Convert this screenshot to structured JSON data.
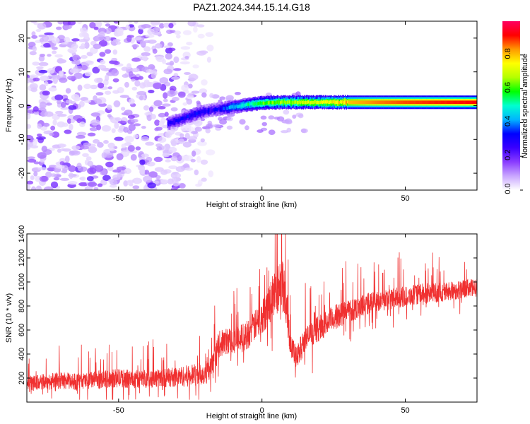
{
  "title": "PAZ1.2024.344.15.14.G18",
  "chart_data": [
    {
      "type": "heatmap",
      "xlabel": "Height of straight line (km)",
      "ylabel": "Frequency (Hz)",
      "xlim": [
        -82,
        75
      ],
      "ylim": [
        -25,
        25
      ],
      "x_ticks": [
        -50,
        0,
        50
      ],
      "y_ticks": [
        -20,
        -10,
        0,
        10,
        20
      ],
      "colorbar": {
        "label": "Normalized spectral amplitude",
        "range": [
          0,
          1
        ],
        "ticks": [
          "0.0",
          "0.2",
          "0.4",
          "0.6",
          "0.8"
        ],
        "tick_values": [
          0,
          0.2,
          0.4,
          0.6,
          0.8
        ],
        "colors": [
          "#ffffff",
          "#c9a6ff",
          "#8a3cff",
          "#3a00ff",
          "#0000ff",
          "#00b4ff",
          "#00ffd0",
          "#00ff00",
          "#b4ff00",
          "#ffff00",
          "#ff9900",
          "#ff0000",
          "#ff0060"
        ]
      },
      "ridge": {
        "x": [
          -33,
          -30,
          -27,
          -24,
          -21,
          -18,
          -15,
          -12,
          -9,
          -6,
          -3,
          0,
          3,
          6,
          9,
          12,
          15,
          20,
          25,
          30,
          40,
          50,
          60,
          75
        ],
        "y": [
          -5.2,
          -4.5,
          -3.6,
          -2.6,
          -1.9,
          -1.4,
          -1.0,
          -0.6,
          -0.2,
          0.2,
          0.5,
          0.8,
          0.9,
          1.0,
          1.0,
          1.0,
          1.0,
          1.0,
          1.0,
          1.0,
          1.0,
          1.0,
          1.0,
          1.0
        ],
        "amplitude": [
          0.3,
          0.3,
          0.32,
          0.32,
          0.3,
          0.28,
          0.3,
          0.38,
          0.45,
          0.5,
          0.55,
          0.6,
          0.62,
          0.65,
          0.65,
          0.68,
          0.7,
          0.72,
          0.75,
          0.8,
          0.85,
          0.88,
          0.9,
          0.92
        ]
      },
      "noise_region": {
        "x": [
          -82,
          -18
        ],
        "y": [
          -25,
          25
        ]
      }
    },
    {
      "type": "line",
      "xlabel": "Height of straight line (km)",
      "ylabel": "SNR (10 * v/v)",
      "xlim": [
        -82,
        75
      ],
      "ylim": [
        0,
        1400
      ],
      "x_ticks": [
        -50,
        0,
        50
      ],
      "y_ticks": [
        200,
        400,
        600,
        800,
        1000,
        1200,
        1400
      ],
      "color": "#f03030",
      "x": [
        -82,
        -75,
        -70,
        -65,
        -60,
        -55,
        -50,
        -45,
        -40,
        -35,
        -30,
        -25,
        -20,
        -17,
        -15,
        -12,
        -9,
        -6,
        -3,
        0,
        2,
        4,
        6,
        7,
        8,
        9,
        10,
        11,
        12,
        13,
        15,
        18,
        20,
        25,
        30,
        35,
        40,
        45,
        50,
        55,
        60,
        65,
        70,
        75
      ],
      "y": [
        150,
        170,
        180,
        170,
        180,
        190,
        200,
        190,
        195,
        200,
        210,
        220,
        240,
        300,
        480,
        510,
        520,
        540,
        620,
        700,
        800,
        900,
        950,
        1050,
        900,
        700,
        500,
        420,
        350,
        420,
        520,
        580,
        620,
        700,
        760,
        800,
        840,
        860,
        880,
        900,
        910,
        920,
        940,
        950
      ],
      "spread": [
        90,
        100,
        100,
        100,
        100,
        110,
        110,
        110,
        110,
        110,
        120,
        130,
        140,
        150,
        160,
        160,
        160,
        180,
        180,
        200,
        250,
        280,
        300,
        320,
        300,
        250,
        180,
        150,
        150,
        150,
        150,
        150,
        150,
        150,
        150,
        140,
        130,
        130,
        120,
        120,
        120,
        120,
        110,
        110
      ],
      "grid": false
    }
  ]
}
